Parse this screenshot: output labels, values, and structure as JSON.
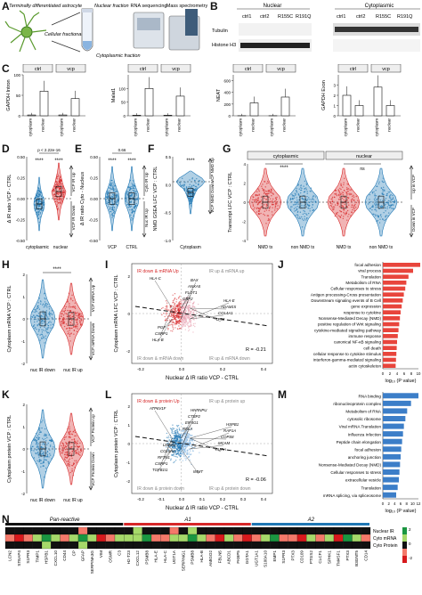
{
  "panel_letters": [
    "A",
    "B",
    "C",
    "D",
    "E",
    "F",
    "G",
    "H",
    "I",
    "J",
    "K",
    "L",
    "M",
    "N"
  ],
  "A": {
    "astrocyte": "Terminally differentiated astrocyte",
    "fractionation": "Cellular fractionation",
    "nuclear_fraction": "Nuclear fraction",
    "cytoplasmic_fraction": "Cytoplasmic fraction",
    "rna_seq": "RNA sequencing",
    "mass_spec": "Mass spectrometry"
  },
  "B": {
    "nuclear": "Nuclear",
    "cytoplasmic": "Cytoplasmic",
    "lanes": [
      "ctrl1",
      "ctrl2",
      "R155C",
      "R191Q"
    ],
    "blots": [
      "Tubulin",
      "Histone H3"
    ]
  },
  "C": {
    "legend_left": "ctrl",
    "legend_right": "vcp",
    "xcats": [
      "cytoplasm",
      "nuclear"
    ],
    "ylabels": [
      "GAPDH Intron",
      "Malat1",
      "NEAT",
      "GAPDH Exon"
    ],
    "chart_data": [
      {
        "type": "bar",
        "ylabel": "GAPDH Intron",
        "groups": [
          "ctrl",
          "vcp"
        ],
        "categories": [
          "cytoplasm",
          "nuclear"
        ],
        "series": [
          {
            "name": "ctrl",
            "values": [
              2,
              60
            ]
          },
          {
            "name": "vcp",
            "values": [
              2,
              42
            ]
          }
        ],
        "ylim": [
          0,
          100
        ],
        "yticks": [
          0,
          50,
          100
        ]
      },
      {
        "type": "bar",
        "ylabel": "Malat1",
        "groups": [
          "ctrl",
          "vcp"
        ],
        "categories": [
          "cytoplasm",
          "nuclear"
        ],
        "series": [
          {
            "name": "ctrl",
            "values": [
              2,
              100
            ]
          },
          {
            "name": "vcp",
            "values": [
              2,
              72
            ]
          }
        ],
        "ylim": [
          0,
          150
        ],
        "yticks": [
          0,
          50,
          100
        ]
      },
      {
        "type": "bar",
        "ylabel": "NEAT",
        "groups": [
          "ctrl",
          "vcp"
        ],
        "categories": [
          "cytoplasm",
          "nuclear"
        ],
        "series": [
          {
            "name": "ctrl",
            "values": [
              2,
              220
            ]
          },
          {
            "name": "vcp",
            "values": [
              2,
              320
            ]
          }
        ],
        "ylim": [
          0,
          700
        ],
        "yticks": [
          0,
          200,
          400,
          600
        ]
      },
      {
        "type": "bar",
        "ylabel": "GAPDH Exon",
        "groups": [
          "ctrl",
          "vcp"
        ],
        "categories": [
          "cytoplasm",
          "nuclear"
        ],
        "series": [
          {
            "name": "ctrl",
            "values": [
              2.0,
              1.0
            ]
          },
          {
            "name": "vcp",
            "values": [
              2.8,
              1.0
            ]
          }
        ],
        "ylim": [
          0,
          4
        ],
        "yticks": [
          0,
          1,
          2,
          3
        ]
      }
    ]
  },
  "D": {
    "ylabel": "Δ IR ratio VCP - CTRL",
    "xcats": [
      "cytoplasmic",
      "nuclear"
    ],
    "pval": "p < 2.22e-16",
    "sig": [
      "****",
      "****"
    ],
    "up": "VCP IR Up",
    "down": "VCP IR Down",
    "yticks": [
      "0.50",
      "0.25",
      "0.00",
      "-0.25",
      "-0.50"
    ]
  },
  "E": {
    "ylabel": "Δ IR ratio Cyto - Nucleus",
    "xcats": [
      "VCP",
      "CTRL"
    ],
    "pval": "0.66",
    "sig": [
      "****",
      "****"
    ],
    "up": "Cyto IR Up",
    "down": "Nuc IR Up",
    "yticks": [
      "0.50",
      "0.25",
      "0.00",
      "-0.25",
      "-0.50"
    ]
  },
  "F": {
    "ylabel": "NMD GSEA LFC VCP : CTRL",
    "xcat": "Cytoplasm",
    "sig": "****",
    "up": "VCP NMD Up",
    "down": "VCP NMD Down",
    "yticks": [
      "0.5",
      "0.0",
      "-0.5",
      "-1.0"
    ]
  },
  "G": {
    "ylabel": "Transcript LFC VCP : CTRL",
    "facets": [
      "cytoplasmic",
      "nuclear"
    ],
    "xcats": [
      "NMD tx",
      "non NMD tx",
      "NMD tx",
      "non NMD tx"
    ],
    "sig": [
      "****",
      "ns"
    ],
    "up": "Up in VCP",
    "down": "Down in VCP",
    "yticks": [
      "4",
      "2",
      "0",
      "-2",
      "-4"
    ]
  },
  "H": {
    "ylabel": "Cytoplasm mRNA VCP : CTRL",
    "xcats": [
      "nuc IR down",
      "nuc IR up"
    ],
    "sig": "****",
    "up": "VCP mRNA Up",
    "down": "VCP mRNA Down",
    "yticks": [
      "2",
      "1",
      "0",
      "-1",
      "-2"
    ]
  },
  "I": {
    "ylabel": "Cytoplasm mRNA LFC VCP : CTRL",
    "xlabel": "Nuclear Δ IR ratio VCP - CTRL",
    "q_tl": "IR down & mRNA Up",
    "q_tr": "IR up & mRNA up",
    "q_bl": "IR down & mRNA down",
    "q_br": "IR up & mRNA down",
    "R": "R = -0.21",
    "xticks": [
      "-0.2",
      "0.0",
      "0.2",
      "0.4"
    ],
    "yticks": [
      "2",
      "0",
      "-2"
    ],
    "genes": [
      "HLA-C",
      "GBP2",
      "TP53",
      "HLA-B",
      "FLOT1",
      "COL4A1",
      "CSRP1",
      "ANXA5",
      "ADAM15",
      "PGF",
      "BAX",
      "HLA-E"
    ]
  },
  "J": {
    "xlabel": "log₁₀ (P value)",
    "chart_data": {
      "type": "bar",
      "orientation": "horizontal",
      "categories": [
        "focal adhesion",
        "viral process",
        "Translation",
        "Metabolism of RNA",
        "Cellular responses to stress",
        "Antigen processing-Cross presentation",
        "Downstream signaling events of B Cell",
        "gene expression",
        "response to cytokine",
        "Nonsense-Mediated Decay (NMD)",
        "positive regulation of Wnt signaling",
        "cytokine-mediated signaling pathway",
        "immune response",
        "canonical NF-κB signaling",
        "cell death",
        "cellular response to cytokine stimulus",
        "interferon-gamma-mediated signaling",
        "actin cytoskeleton"
      ],
      "values": [
        10.5,
        8.5,
        7.2,
        6.6,
        6.3,
        5.9,
        5.6,
        5.3,
        5.0,
        4.8,
        4.6,
        4.4,
        4.2,
        4.0,
        3.9,
        3.8,
        3.7,
        3.6
      ],
      "xticks": [
        0,
        2,
        4,
        6,
        8,
        10
      ]
    }
  },
  "K": {
    "ylabel": "Cytoplasm protein VCP : CTRL",
    "xcats": [
      "nuc IR down",
      "nuc IR up"
    ],
    "up": "VCP Protein Up",
    "down": "VCP Protein Down",
    "yticks": [
      "2",
      "1",
      "0",
      "-1",
      "-2"
    ]
  },
  "L": {
    "ylabel": "Cytoplasm protein VCP : CTRL",
    "xlabel": "Nuclear Δ IR ratio VCP - CTRL",
    "q_tl": "IR down & protein Up",
    "q_tr": "IR up & protein up",
    "q_bl": "IR down & protein down",
    "q_br": "IR up & protein down",
    "R": "R = -0.06",
    "xticks": [
      "-0.2",
      "-0.1",
      "0.0",
      "0.1",
      "0.2",
      "0.3",
      "0.4"
    ],
    "yticks": [
      "2",
      "1",
      "0",
      "-1",
      "-2"
    ],
    "genes": [
      "ATP6V1F",
      "RELA",
      "PURA",
      "TGFB1I1",
      "EIF4G1",
      "MCAM",
      "CSRP1",
      "CTBP2",
      "COPS8",
      "RFTN1",
      "HNRNPU",
      "RAP1A",
      "COL5A2",
      "IMMT",
      "HSPB1",
      "LMNB2"
    ]
  },
  "M": {
    "xlabel": "log₁₀ (P value)",
    "chart_data": {
      "type": "bar",
      "orientation": "horizontal",
      "categories": [
        "RNA binding",
        "ribonucleoprotein complex",
        "Metabolism of RNA",
        "cytosolic ribosome",
        "Viral mRNA Translation",
        "Influenza Infection",
        "Peptide chain elongation",
        "focal adhesion",
        "anchoring junction",
        "Nonsense-Mediated Decay (NMD)",
        "Cellular responses to stress",
        "extracellular vesicle",
        "Translation",
        "mRNA splicing, via spliceosome"
      ],
      "values": [
        12.0,
        9.5,
        8.2,
        7.6,
        7.1,
        6.8,
        6.5,
        6.2,
        6.0,
        5.8,
        5.6,
        5.4,
        5.0,
        4.5
      ],
      "xticks": [
        0,
        2,
        4,
        6,
        8,
        10,
        12
      ]
    }
  },
  "N": {
    "groups": [
      "Pan-reactive",
      "A1",
      "A2"
    ],
    "rows": [
      "Nuclear IR",
      "Cyto mRNA",
      "Cyto Protein"
    ],
    "legend_ticks": [
      "2",
      "0",
      "-2"
    ],
    "genes": [
      "LCN2",
      "STEAP4",
      "S1PR3",
      "TIMP1",
      "HSPB1",
      "CXCL10",
      "CD44",
      "CP",
      "GFAP",
      "SERPINA3G",
      "VIM",
      "OSMR",
      "C3",
      "H2-T23",
      "CXCL12",
      "PSMB8",
      "HLA-E",
      "HLA-C",
      "UGT1A",
      "SERPING1",
      "PSMB8",
      "HLA-B",
      "AMIGO2",
      "FBLN5",
      "ABCD1",
      "FKBP5",
      "GGTA1",
      "UGT1A1",
      "S100A10",
      "EMP1",
      "S1PR3",
      "PTX3",
      "CD109",
      "PTGS2",
      "CLCF1",
      "SPHK1",
      "TM4SF1",
      "PTX3",
      "B3GNT5",
      "CD14"
    ],
    "values": {
      "Nuclear IR": [
        0,
        0,
        0,
        0,
        0,
        0,
        0,
        0,
        -1,
        0,
        0,
        0,
        0,
        0,
        1,
        0,
        0,
        0,
        -1,
        0,
        1,
        0,
        0,
        0,
        0,
        0,
        0,
        0,
        0,
        0,
        0,
        0,
        0,
        0,
        0,
        0,
        0,
        0,
        0,
        0
      ],
      "Cyto mRNA": [
        -1,
        -2,
        -1,
        1,
        2,
        1,
        -1,
        1,
        2,
        1,
        -2,
        -1,
        1,
        1,
        1,
        2,
        -1,
        -1,
        1,
        1,
        2,
        1,
        -1,
        -2,
        1,
        -1,
        -2,
        -1,
        1,
        2,
        -1,
        -1,
        -2,
        1,
        -1,
        1,
        -2,
        2,
        1,
        -1
      ],
      "Cyto Protein": [
        0,
        0,
        0,
        0,
        1,
        0,
        0,
        0,
        1,
        0,
        0,
        0,
        0,
        0,
        0,
        0,
        0,
        0,
        0,
        0,
        0,
        0,
        0,
        0,
        0,
        0,
        0,
        0,
        0,
        0,
        0,
        0,
        0,
        0,
        0,
        0,
        0,
        0,
        0,
        0
      ]
    }
  },
  "colors": {
    "blue": "#1f77b4",
    "red": "#d62728",
    "gray": "#888888"
  }
}
